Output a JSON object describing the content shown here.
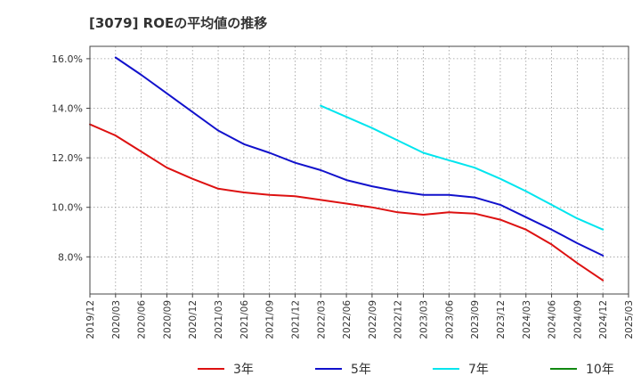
{
  "chart_data": {
    "type": "line",
    "title": "[3079]  ROEの平均値の推移",
    "xlabel": "",
    "ylabel": "",
    "x": [
      "2019/12",
      "2020/03",
      "2020/06",
      "2020/09",
      "2020/12",
      "2021/03",
      "2021/06",
      "2021/09",
      "2021/12",
      "2022/03",
      "2022/06",
      "2022/09",
      "2022/12",
      "2023/03",
      "2023/06",
      "2023/09",
      "2023/12",
      "2024/03",
      "2024/06",
      "2024/09",
      "2024/12",
      "2025/03"
    ],
    "y_ticks": [
      "8.0%",
      "10.0%",
      "12.0%",
      "14.0%",
      "16.0%"
    ],
    "y_tick_values": [
      8,
      10,
      12,
      14,
      16
    ],
    "ylim": [
      6.5,
      16.5
    ],
    "grid": true,
    "legend_position": "bottom",
    "series": [
      {
        "name": "3年",
        "color": "#dd1111",
        "values": [
          13.35,
          12.9,
          12.25,
          11.6,
          11.15,
          10.75,
          10.6,
          10.5,
          10.45,
          10.3,
          10.15,
          10.0,
          9.8,
          9.7,
          9.8,
          9.75,
          9.5,
          9.1,
          8.5,
          7.75,
          7.05,
          null
        ]
      },
      {
        "name": "5年",
        "color": "#1111cc",
        "values": [
          null,
          16.05,
          15.35,
          14.6,
          13.85,
          13.1,
          12.55,
          12.2,
          11.8,
          11.5,
          11.1,
          10.85,
          10.65,
          10.5,
          10.5,
          10.4,
          10.1,
          9.6,
          9.1,
          8.55,
          8.05,
          null
        ]
      },
      {
        "name": "7年",
        "color": "#00e5ee",
        "values": [
          null,
          null,
          null,
          null,
          null,
          null,
          null,
          null,
          null,
          14.1,
          13.65,
          13.2,
          12.7,
          12.2,
          11.9,
          11.6,
          11.15,
          10.65,
          10.1,
          9.55,
          9.1,
          null
        ]
      },
      {
        "name": "10年",
        "color": "#118811",
        "values": [
          null,
          null,
          null,
          null,
          null,
          null,
          null,
          null,
          null,
          null,
          null,
          null,
          null,
          null,
          null,
          null,
          null,
          null,
          null,
          null,
          null,
          null
        ]
      }
    ]
  }
}
